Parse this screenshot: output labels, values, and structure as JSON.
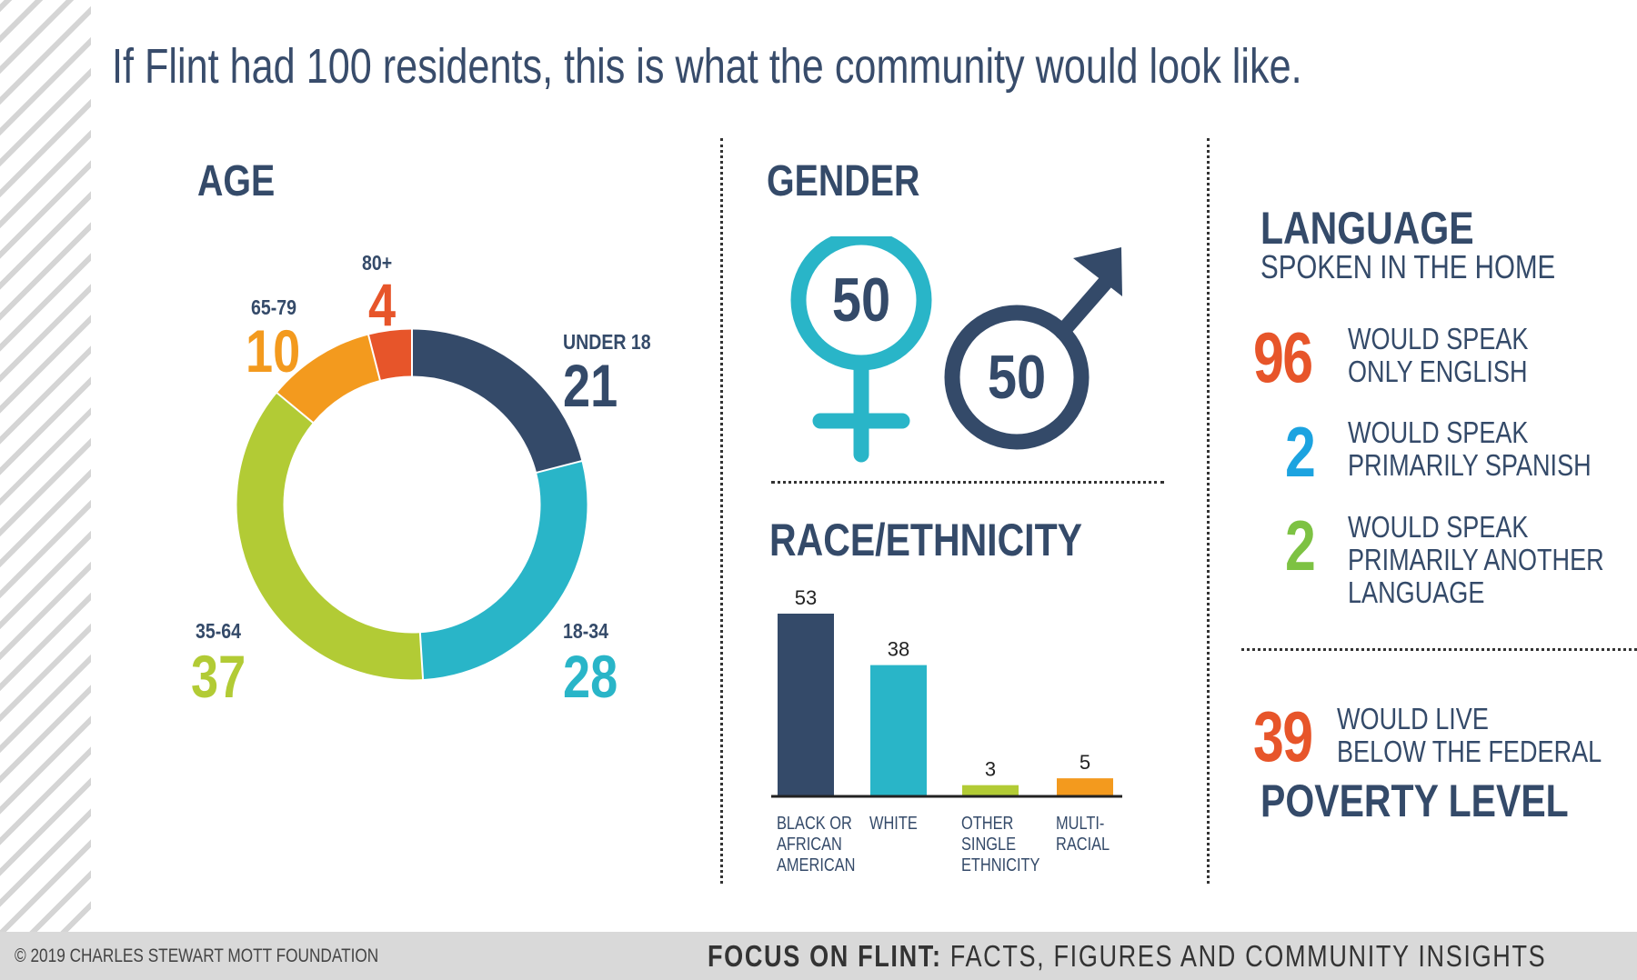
{
  "title": "If Flint had 100 residents, this is what the community would look like.",
  "colors": {
    "navy": "#344a69",
    "teal": "#29b5c8",
    "green": "#b2cb35",
    "orange": "#f39a1e",
    "red_orange": "#e7552a",
    "blue": "#1ca3e0",
    "lang_green": "#7dc243"
  },
  "age": {
    "heading": "AGE"
  },
  "gender": {
    "heading": "GENDER",
    "female_value": "50",
    "male_value": "50",
    "female_icon": "female-symbol",
    "male_icon": "male-symbol"
  },
  "race": {
    "heading": "RACE/ETHNICITY"
  },
  "language": {
    "heading": "LANGUAGE",
    "subheading": "SPOKEN IN THE HOME",
    "items": [
      {
        "value": "96",
        "line1": "WOULD SPEAK",
        "line2": "ONLY ENGLISH",
        "line3": ""
      },
      {
        "value": "2",
        "line1": "WOULD SPEAK",
        "line2": "PRIMARILY SPANISH",
        "line3": ""
      },
      {
        "value": "2",
        "line1": "WOULD SPEAK",
        "line2": "PRIMARILY ANOTHER",
        "line3": "LANGUAGE"
      }
    ]
  },
  "poverty": {
    "value": "39",
    "line1": "WOULD LIVE",
    "line2": "BELOW THE FEDERAL",
    "heading": "POVERTY LEVEL"
  },
  "footer": {
    "copyright": "© 2019 CHARLES STEWART MOTT FOUNDATION",
    "brand": "FOCUS ON FLINT:",
    "tagline": " FACTS, FIGURES AND COMMUNITY INSIGHTS"
  },
  "chart_data": [
    {
      "type": "pie",
      "title": "AGE",
      "categories": [
        "UNDER 18",
        "18-34",
        "35-64",
        "65-79",
        "80+"
      ],
      "values": [
        21,
        28,
        37,
        10,
        4
      ],
      "colors": [
        "#344a69",
        "#29b5c8",
        "#b2cb35",
        "#f39a1e",
        "#e7552a"
      ]
    },
    {
      "type": "bar",
      "title": "RACE/ETHNICITY",
      "categories": [
        "BLACK OR AFRICAN AMERICAN",
        "WHITE",
        "OTHER SINGLE ETHNICITY",
        "MULTI-RACIAL"
      ],
      "category_lines": [
        [
          "BLACK OR",
          "AFRICAN",
          "AMERICAN"
        ],
        [
          "WHITE"
        ],
        [
          "OTHER",
          "SINGLE",
          "ETHNICITY"
        ],
        [
          "MULTI-",
          "RACIAL"
        ]
      ],
      "values": [
        53,
        38,
        3,
        5
      ],
      "colors": [
        "#344a69",
        "#29b5c8",
        "#b2cb35",
        "#f39a1e"
      ]
    }
  ]
}
